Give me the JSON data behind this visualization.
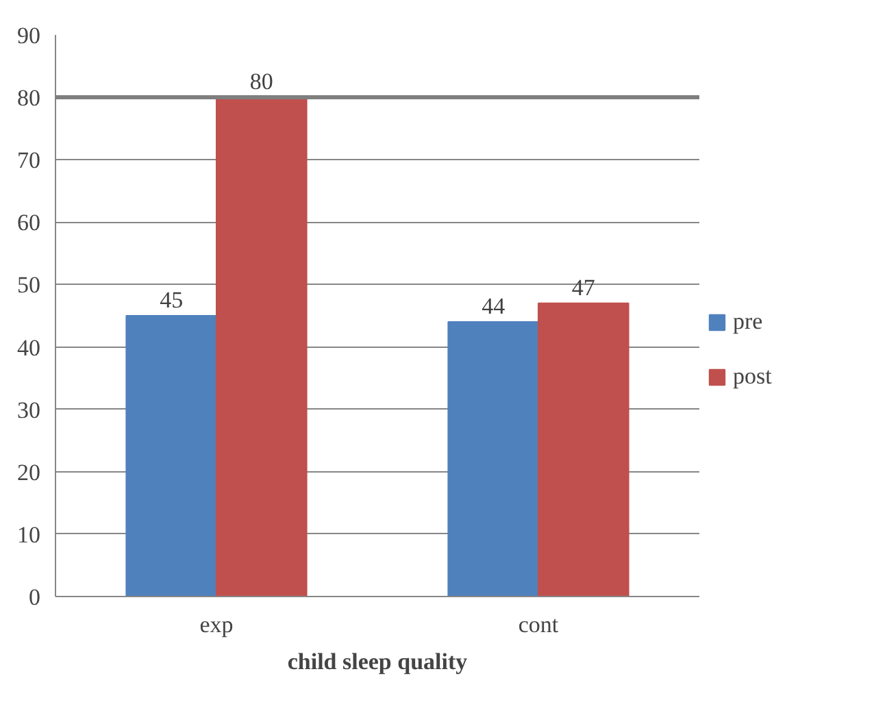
{
  "chart_data": {
    "type": "bar",
    "xlabel": "child sleep quality",
    "categories": [
      "exp",
      "cont"
    ],
    "series": [
      {
        "name": "pre",
        "color": "#4f81bd",
        "values": [
          45,
          44
        ]
      },
      {
        "name": "post",
        "color": "#c0504d",
        "values": [
          80,
          47
        ]
      }
    ],
    "ylim": [
      0,
      90
    ],
    "yticks": [
      0,
      10,
      20,
      30,
      40,
      50,
      60,
      70,
      80,
      90
    ],
    "grid": "y",
    "legend": "right",
    "data_labels": true,
    "ref_lines": [
      {
        "axis": "y",
        "value": 80,
        "color": "#7f7f7f"
      }
    ]
  }
}
